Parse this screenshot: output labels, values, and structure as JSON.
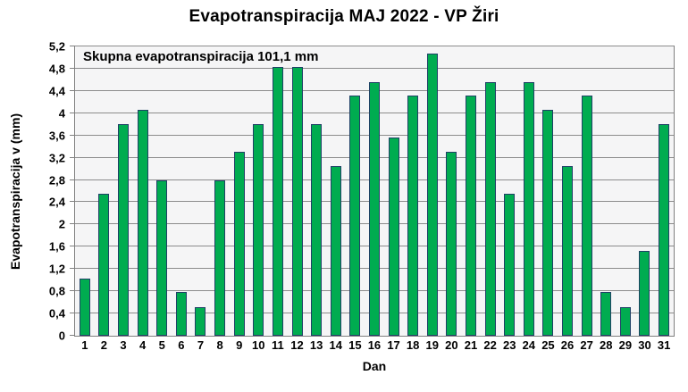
{
  "page": {
    "background": "#FFFFFF"
  },
  "chart_data": {
    "type": "bar",
    "title": "Evapotranspiracija  MAJ 2022 - VP Žiri",
    "annotation": "Skupna evapotranspiracija  101,1 mm",
    "xlabel": "Dan",
    "ylabel": "Evapotranspiracija v (mm)",
    "categories": [
      "1",
      "2",
      "3",
      "4",
      "5",
      "6",
      "7",
      "8",
      "9",
      "10",
      "11",
      "12",
      "13",
      "14",
      "15",
      "16",
      "17",
      "18",
      "19",
      "20",
      "21",
      "22",
      "23",
      "24",
      "25",
      "26",
      "27",
      "28",
      "29",
      "30",
      "31"
    ],
    "values": [
      1.03,
      2.55,
      3.8,
      4.06,
      2.79,
      0.78,
      0.52,
      2.79,
      3.3,
      3.8,
      4.83,
      4.83,
      3.8,
      3.05,
      4.31,
      4.56,
      3.56,
      4.31,
      5.07,
      3.3,
      4.31,
      4.56,
      2.55,
      4.56,
      4.06,
      3.05,
      4.31,
      0.78,
      0.52,
      1.53,
      3.8
    ],
    "ylim": [
      0,
      5.2
    ],
    "ytick_step": 0.4,
    "ytick_labels": [
      "0",
      "0,4",
      "0,8",
      "1,2",
      "1,6",
      "2",
      "2,4",
      "2,8",
      "3,2",
      "3,6",
      "4",
      "4,4",
      "4,8",
      "5,2"
    ],
    "grid": true,
    "legend": "none",
    "colors": {
      "bar_fill": "#00AC50",
      "bar_border": "#1F4066",
      "plot_bg": "#F5F5F6",
      "grid_line": "#8C8C8C",
      "axis_line": "#808080",
      "text": "#000000"
    }
  }
}
